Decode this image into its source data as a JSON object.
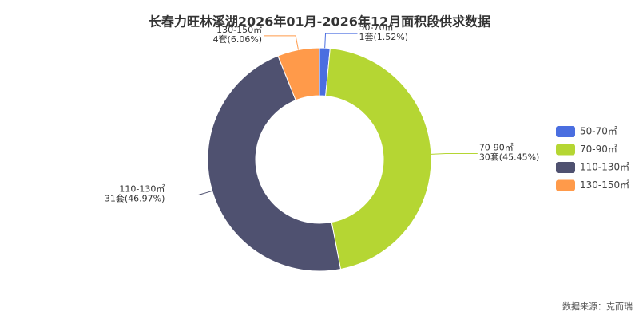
{
  "chart_data": {
    "type": "donut",
    "title": "长春力旺林溪湖2026年01月-2026年12月面积段供求数据",
    "categories": [
      "50-70㎡",
      "70-90㎡",
      "110-130㎡",
      "130-150㎡"
    ],
    "values": [
      1,
      30,
      31,
      4
    ],
    "value_labels": [
      "1套(1.52%)",
      "30套(45.45%)",
      "31套(46.97%)",
      "4套(6.06%)"
    ],
    "colors": [
      "#4a6ee0",
      "#b5d633",
      "#4f5170",
      "#ff9a4a"
    ],
    "legend": "right",
    "source": "数据来源：克而瑞"
  }
}
